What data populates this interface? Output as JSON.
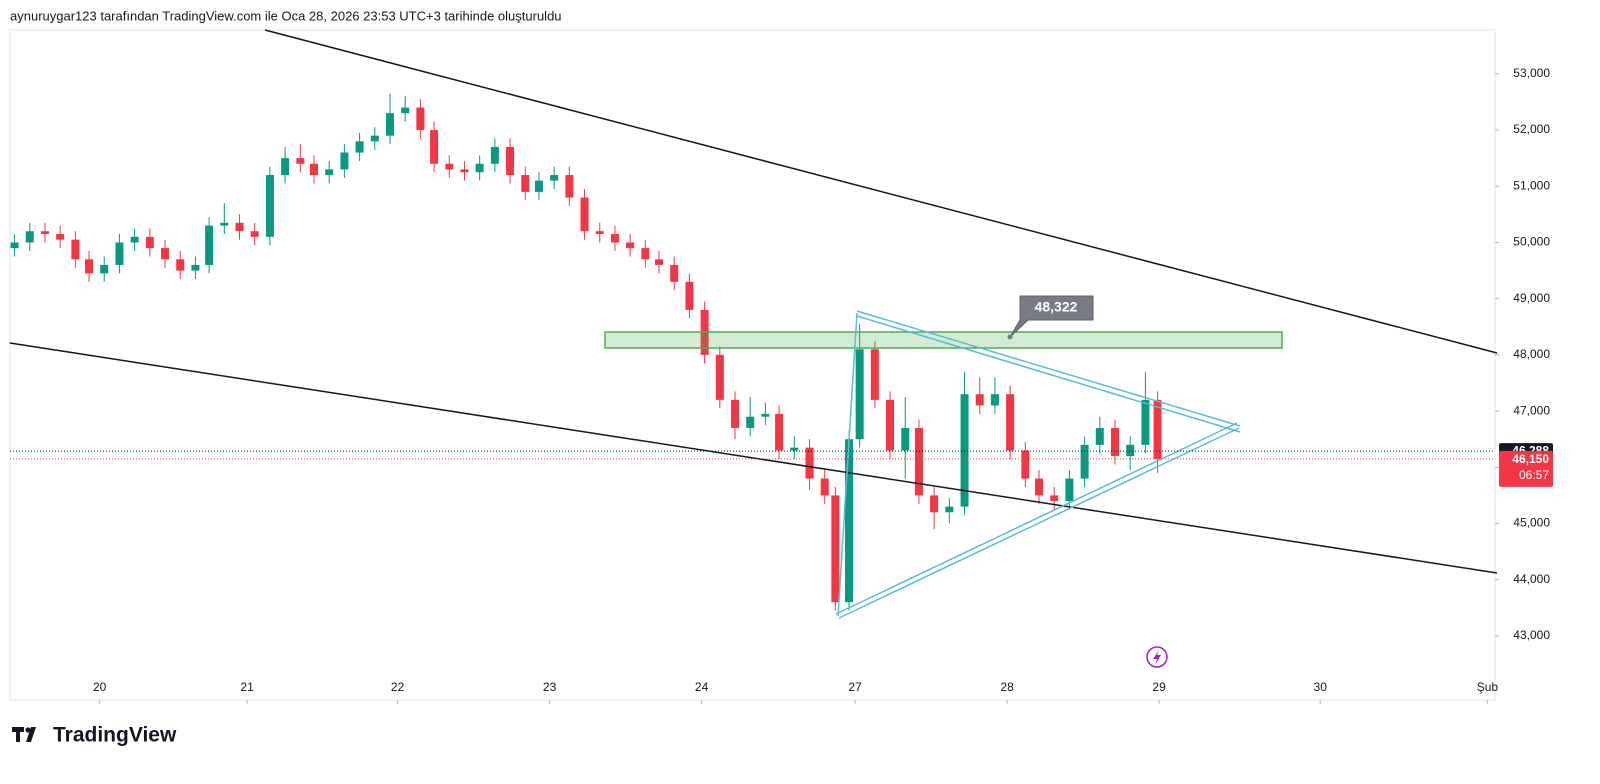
{
  "header": "aynuruygar123 tarafından TradingView.com ile Oca 28, 2026 23:53 UTC+3 tarihinde oluşturuldu",
  "logo": "TradingView",
  "chart_data": {
    "type": "candlestick",
    "x": [
      -0.56,
      -0.46,
      -0.36,
      -0.26,
      -0.16,
      -0.07,
      0.03,
      0.13,
      0.23,
      0.33,
      0.43,
      0.53,
      0.63,
      0.72,
      0.82,
      0.92,
      1.02,
      1.12,
      1.22,
      1.32,
      1.41,
      1.51,
      1.61,
      1.71,
      1.81,
      1.91,
      2.01,
      2.11,
      2.2,
      2.3,
      2.4,
      2.5,
      2.6,
      2.7,
      2.8,
      2.89,
      2.99,
      3.09,
      3.19,
      3.29,
      3.39,
      3.49,
      3.59,
      3.68,
      3.78,
      3.88,
      3.98,
      4.08,
      4.18,
      4.28,
      4.38,
      4.47,
      4.57,
      4.67,
      4.77,
      4.84,
      4.93,
      5.0,
      5.1,
      5.2,
      5.3,
      5.39,
      5.49,
      5.59,
      5.69,
      5.79,
      5.89,
      5.99,
      6.09,
      6.18,
      6.28,
      6.38,
      6.48,
      6.58,
      6.68,
      6.78,
      6.88,
      6.96
    ],
    "open": [
      49900,
      50000,
      50200,
      50150,
      50050,
      49700,
      49450,
      49600,
      50000,
      50100,
      49900,
      49700,
      49500,
      49600,
      50300,
      50350,
      50200,
      50100,
      51200,
      51500,
      51400,
      51200,
      51300,
      51600,
      51800,
      51900,
      52300,
      52400,
      52000,
      51400,
      51300,
      51250,
      51400,
      51700,
      51200,
      50900,
      51100,
      51200,
      50800,
      50200,
      50150,
      50000,
      49900,
      49700,
      49600,
      49300,
      48800,
      48000,
      47200,
      46700,
      46900,
      46950,
      46300,
      46350,
      45800,
      45500,
      43600,
      46500,
      48100,
      47200,
      46300,
      46700,
      45500,
      45200,
      45300,
      47300,
      47100,
      47300,
      46300,
      45800,
      45500,
      45400,
      45800,
      46400,
      46700,
      46200,
      46400,
      47200
    ],
    "high": [
      50150,
      50350,
      50350,
      50300,
      50200,
      49850,
      49750,
      50150,
      50250,
      50250,
      50050,
      49850,
      49750,
      50450,
      50700,
      50500,
      50350,
      51350,
      51700,
      51750,
      51550,
      51450,
      51750,
      51950,
      52050,
      52650,
      52600,
      52550,
      52150,
      51550,
      51450,
      51550,
      51850,
      51850,
      51350,
      51250,
      51350,
      51350,
      50950,
      50350,
      50300,
      50150,
      50050,
      49850,
      49750,
      49450,
      48950,
      48150,
      47350,
      47250,
      47150,
      47100,
      46550,
      46500,
      45950,
      45650,
      46650,
      48550,
      48250,
      47350,
      47250,
      46850,
      45650,
      45450,
      47700,
      47600,
      47600,
      47450,
      46450,
      45950,
      45650,
      45950,
      46550,
      46900,
      46850,
      46550,
      47700,
      47350
    ],
    "low": [
      49750,
      49850,
      50000,
      49900,
      49550,
      49300,
      49300,
      49450,
      49850,
      49750,
      49550,
      49350,
      49350,
      49450,
      50150,
      50050,
      49950,
      49950,
      51050,
      51250,
      51050,
      51050,
      51150,
      51450,
      51650,
      51750,
      52150,
      51850,
      51250,
      51150,
      51100,
      51100,
      51250,
      51050,
      50750,
      50750,
      50950,
      50650,
      50050,
      50000,
      49850,
      49750,
      49550,
      49450,
      49150,
      48650,
      47850,
      47050,
      46500,
      46550,
      46750,
      46150,
      46150,
      45600,
      45350,
      43450,
      43450,
      46350,
      47050,
      46150,
      45800,
      45350,
      44900,
      45000,
      45150,
      46950,
      46950,
      46150,
      45650,
      45350,
      45250,
      45250,
      45650,
      46250,
      46050,
      45950,
      46250,
      45900
    ],
    "close": [
      50000,
      50200,
      50150,
      50050,
      49700,
      49450,
      49600,
      50000,
      50100,
      49900,
      49700,
      49500,
      49600,
      50300,
      50350,
      50200,
      50100,
      51200,
      51500,
      51400,
      51200,
      51300,
      51600,
      51800,
      51900,
      52300,
      52400,
      52000,
      51400,
      51300,
      51250,
      51400,
      51700,
      51200,
      50900,
      51100,
      51200,
      50800,
      50200,
      50150,
      50000,
      49900,
      49700,
      49600,
      49300,
      48800,
      48000,
      47200,
      46700,
      46900,
      46950,
      46300,
      46350,
      45800,
      45500,
      43600,
      46500,
      48100,
      47200,
      46300,
      46700,
      45500,
      45200,
      45300,
      47300,
      47100,
      47300,
      46300,
      45800,
      45500,
      45400,
      45800,
      46400,
      46700,
      46200,
      46400,
      47200,
      46150
    ],
    "up_color": "#089981",
    "down_color": "#f23645",
    "xlim": [
      -0.59,
      9.18
    ],
    "xticks": [
      {
        "value": 0,
        "label": "20"
      },
      {
        "value": 0.97,
        "label": "21"
      },
      {
        "value": 1.96,
        "label": "22"
      },
      {
        "value": 2.96,
        "label": "23"
      },
      {
        "value": 3.96,
        "label": "24"
      },
      {
        "value": 4.97,
        "label": "27"
      },
      {
        "value": 5.97,
        "label": "28"
      },
      {
        "value": 6.97,
        "label": "29"
      },
      {
        "value": 8.03,
        "label": "30"
      },
      {
        "value": 9.13,
        "label": "Şub"
      }
    ],
    "ylim": [
      41860,
      53780
    ],
    "yticks": [
      {
        "value": 43000,
        "label": "43,000"
      },
      {
        "value": 44000,
        "label": "44,000"
      },
      {
        "value": 45000,
        "label": "45,000"
      },
      {
        "value": 46000,
        "label": "46,000"
      },
      {
        "value": 47000,
        "label": "47,000"
      },
      {
        "value": 48000,
        "label": "48,000"
      },
      {
        "value": 49000,
        "label": "49,000"
      },
      {
        "value": 50000,
        "label": "50,000"
      },
      {
        "value": 51000,
        "label": "51,000"
      },
      {
        "value": 52000,
        "label": "52,000"
      },
      {
        "value": 53000,
        "label": "53,000"
      }
    ],
    "annotation": {
      "value": 48322,
      "label": "48,322"
    },
    "prev_price": {
      "value": 46288,
      "label": "46,288"
    },
    "last_price": {
      "value": 46150,
      "label": "46,150"
    },
    "countdown": "06:57"
  }
}
